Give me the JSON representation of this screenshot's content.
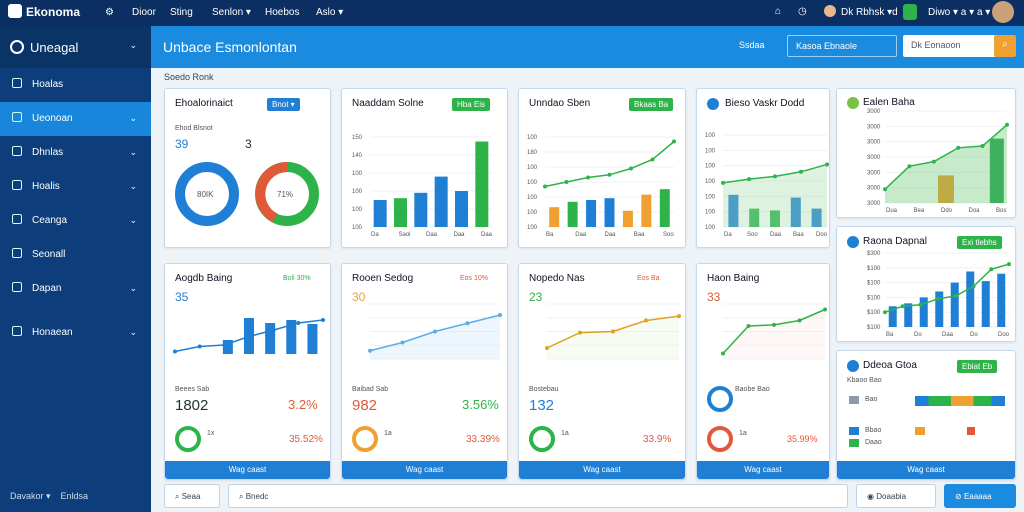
{
  "app": {
    "name": "Ekonoma"
  },
  "topnav": [
    "Dioor",
    "Sting",
    "Senlon ▾",
    "Hoebos",
    "Aslo ▾"
  ],
  "topright": {
    "user": "Dk Rbhsk ▾d",
    "account": "Diwo ▾ a ▾ a ▾ a"
  },
  "sidebar": {
    "header": "Uneagal",
    "items": [
      "Hoalas",
      "Ueonoan",
      "Dhnlas",
      "Hoalis",
      "Ceanga",
      "Seonall",
      "Dapan",
      "Honaean"
    ],
    "footer1": "Davakor ▾",
    "footer2": "Enldsa"
  },
  "header": {
    "title": "Unbace Esmonlontan",
    "btn1": "Ssdaa",
    "btn2": "Kasoa Ebnaole",
    "search": "Dk Eonaoon"
  },
  "breadcrumb": "Soedo Ronk",
  "cards": {
    "c1": {
      "title": "Ehoalorinaict",
      "badge": "Bnot ▾",
      "sub": "Ehod Blsnot",
      "v1": "39",
      "v2": "3",
      "d1": "80IK",
      "d2": "71%"
    },
    "c2": {
      "title": "Naaddam Solne",
      "badge": "Hba Eis",
      "ylabels": [
        "150",
        "140",
        "100",
        "100",
        "100",
        "100"
      ],
      "xlabels": [
        "Da",
        "Saol",
        "Daa",
        "Daa",
        "Daa"
      ]
    },
    "c3": {
      "title": "Unndao Sben",
      "badge": "Bkaas Ba",
      "ylabels": [
        "100",
        "180",
        "100",
        "100",
        "100",
        "100",
        "100"
      ],
      "xlabels": [
        "Ba",
        "Daa",
        "Daa",
        "Baa",
        "Soo"
      ]
    },
    "c4": {
      "title": "Bieso Vaskr Dodd",
      "ylabels": [
        "100",
        "100",
        "100",
        "100",
        "100",
        "100",
        "100"
      ],
      "xlabels": [
        "Da",
        "Soo",
        "Daa",
        "Baa",
        "Doo"
      ]
    },
    "c5": {
      "title": "Aogdb Baing",
      "badge": "Boli 30%",
      "big": "35",
      "foot": "Beees Sab",
      "val1": "1802",
      "val2": "3.2%",
      "stat1": "1x",
      "stat2": "35.52%"
    },
    "c6": {
      "title": "Rooen Sedog",
      "badge": "Eos 10%",
      "big": "30",
      "foot": "Baibad Sab",
      "val1": "982",
      "val2": "3.56%",
      "stat1": "1a",
      "stat2": "33.39%"
    },
    "c7": {
      "title": "Nopedo Nas",
      "badge": "Eos Ba",
      "big": "23",
      "foot": "Bostebau",
      "val1": "132",
      "val2": "",
      "stat1": "1a",
      "stat2": "33.9%"
    },
    "c8": {
      "title": "Haon Baing",
      "big": "33",
      "foot": "Baobe Bao",
      "val1": "",
      "val2": "",
      "stat1": "1a",
      "stat2": "35.99%"
    },
    "r1": {
      "title": "Ealen Baha",
      "ylabels": [
        "3000",
        "3000",
        "3000",
        "3000",
        "3000",
        "3000",
        "3000"
      ],
      "xlabels": [
        "Dua",
        "Bea",
        "Ddo",
        "Doa",
        "Bos"
      ]
    },
    "r2": {
      "title": "Raona Dapnal",
      "badge": "Exi tlebhs",
      "ylabels": [
        "$300",
        "$100",
        "$100",
        "$100",
        "$100",
        "$100"
      ],
      "xlabels": [
        "Ba",
        "Do",
        "Daa",
        "Do",
        "Doo"
      ]
    },
    "r3": {
      "title": "Ddeoa Gtoa",
      "badge": "Ebiat Eb",
      "sub": "Kbaoo Bao",
      "rows": [
        "Bao",
        "Bbao",
        "Daao"
      ]
    }
  },
  "detail_label": "Wag caast",
  "bottom": {
    "search": "Seaa",
    "input": "Bnedc",
    "btn1": "Doaabia",
    "btn2": "Eaaaaa"
  },
  "colors": {
    "navy": "#0b2f63",
    "blue": "#1b8be0",
    "green": "#2db34a",
    "orange": "#f0a030",
    "red": "#e05a3a"
  }
}
